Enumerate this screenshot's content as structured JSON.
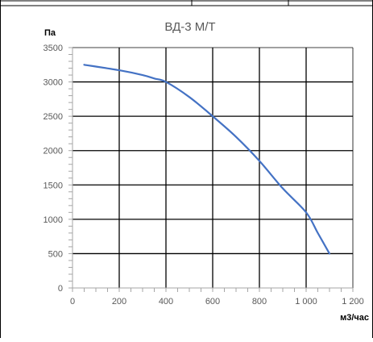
{
  "chart_data": {
    "type": "line",
    "title": "ВД-3 М/Т",
    "xlabel": "м3/час",
    "ylabel": "Па",
    "xlim": [
      0,
      1200
    ],
    "ylim": [
      0,
      3500
    ],
    "x_ticks": [
      0,
      200,
      400,
      600,
      800,
      1000,
      1200
    ],
    "x_tick_labels": [
      "0",
      "200",
      "400",
      "600",
      "800",
      "1 000",
      "1 200"
    ],
    "y_ticks": [
      0,
      500,
      1000,
      1500,
      2000,
      2500,
      3000,
      3500
    ],
    "y_tick_labels": [
      "0",
      "500",
      "1000",
      "1500",
      "2000",
      "2500",
      "3000",
      "3500"
    ],
    "grid": true,
    "series": [
      {
        "color": "#4472c4",
        "x": [
          50,
          200,
          300,
          350,
          400,
          500,
          600,
          700,
          800,
          900,
          1000,
          1050,
          1100
        ],
        "y": [
          3250,
          3170,
          3100,
          3050,
          3000,
          2780,
          2500,
          2200,
          1850,
          1450,
          1100,
          800,
          500
        ]
      }
    ]
  },
  "colors": {
    "line": "#4472c4",
    "grid": "#000000",
    "border": "#000000"
  }
}
